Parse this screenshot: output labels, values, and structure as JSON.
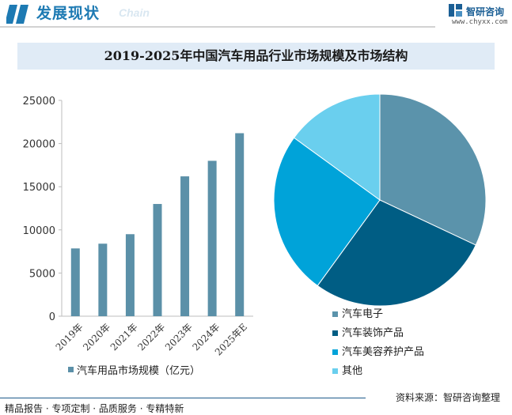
{
  "header": {
    "title": "发展现状",
    "subtitle": "Chain",
    "brand_name": "智研咨询",
    "brand_url": "www.chyxx.com"
  },
  "colors": {
    "accent": "#1d7ab3",
    "bar": "#5b90a8",
    "title_band": "#e0ebf6"
  },
  "chart_data": [
    {
      "type": "bar",
      "title": "2019-2025年中国汽车用品行业市场规模及市场结构",
      "categories": [
        "2019年",
        "2020年",
        "2021年",
        "2022年",
        "2023年",
        "2024年",
        "2025年E"
      ],
      "series": [
        {
          "name": "汽车用品市场规模（亿元）",
          "values": [
            7850,
            8400,
            9500,
            13000,
            16200,
            18000,
            21200
          ]
        }
      ],
      "ylim": [
        0,
        25000
      ],
      "yticks": [
        0,
        5000,
        10000,
        15000,
        20000,
        25000
      ],
      "grid": false,
      "legend": "bottom"
    },
    {
      "type": "pie",
      "labels": [
        "汽车电子",
        "汽车装饰产品",
        "汽车美容养护产品",
        "其他"
      ],
      "values": [
        32,
        28,
        25,
        15
      ],
      "colors": [
        "#5b93ab",
        "#005d84",
        "#00a3d9",
        "#6acfee"
      ],
      "legend": "bottom"
    }
  ],
  "footer": {
    "left": "精品报告 · 专项定制 · 品质服务 · 专精特新",
    "right": "资料来源：智研咨询整理"
  }
}
